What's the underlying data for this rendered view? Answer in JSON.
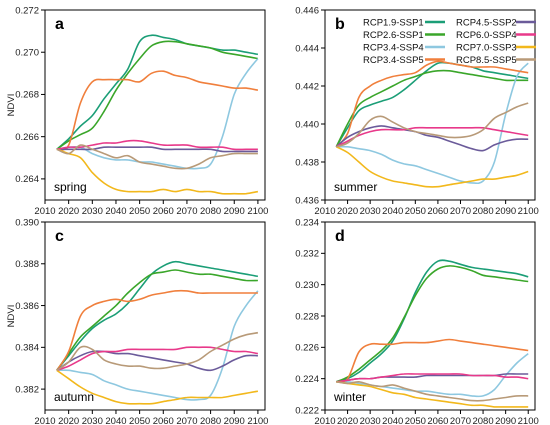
{
  "legend": [
    {
      "name": "RCP1.9-SSP1",
      "color": "#1b9e77"
    },
    {
      "name": "RCP2.6-SSP1",
      "color": "#3aa62a"
    },
    {
      "name": "RCP3.4-SSP4",
      "color": "#8ec8e0"
    },
    {
      "name": "RCP3.4-SSP5",
      "color": "#f07f3c"
    },
    {
      "name": "RCP4.5-SSP2",
      "color": "#6b5b9a"
    },
    {
      "name": "RCP6.0-SSP4",
      "color": "#e8398a"
    },
    {
      "name": "RCP7.0-SSP3",
      "color": "#f2b81c"
    },
    {
      "name": "RCP8.5-SSP5",
      "color": "#b89a78"
    }
  ],
  "chart_data": [
    {
      "type": "line",
      "panel": "a",
      "season": "spring",
      "ylabel": "NDVI",
      "ylim": [
        0.263,
        0.272
      ],
      "yticks": [
        0.264,
        0.266,
        0.268,
        0.27,
        0.272
      ],
      "xlim": [
        2010,
        2103
      ],
      "xticks": [
        2010,
        2020,
        2030,
        2040,
        2050,
        2060,
        2070,
        2080,
        2090,
        2100
      ],
      "x": [
        2015,
        2020,
        2025,
        2030,
        2035,
        2040,
        2045,
        2050,
        2055,
        2060,
        2065,
        2070,
        2075,
        2080,
        2085,
        2090,
        2095,
        2100
      ],
      "series": [
        {
          "name": "RCP1.9-SSP1",
          "values": [
            0.2654,
            0.2659,
            0.2665,
            0.267,
            0.2678,
            0.2685,
            0.2692,
            0.2705,
            0.2708,
            0.2707,
            0.2706,
            0.2704,
            0.2703,
            0.2702,
            0.2701,
            0.2701,
            0.27,
            0.2699
          ]
        },
        {
          "name": "RCP2.6-SSP1",
          "values": [
            0.2654,
            0.2658,
            0.2661,
            0.2664,
            0.2672,
            0.2682,
            0.269,
            0.2697,
            0.2703,
            0.2705,
            0.2705,
            0.2704,
            0.2703,
            0.2702,
            0.27,
            0.2699,
            0.2698,
            0.2697
          ]
        },
        {
          "name": "RCP3.4-SSP4",
          "values": [
            0.2654,
            0.2655,
            0.2655,
            0.2652,
            0.265,
            0.2649,
            0.2649,
            0.2648,
            0.2648,
            0.2647,
            0.2646,
            0.2645,
            0.2645,
            0.2647,
            0.266,
            0.268,
            0.269,
            0.2697
          ]
        },
        {
          "name": "RCP3.4-SSP5",
          "values": [
            0.2654,
            0.2656,
            0.2676,
            0.2686,
            0.2687,
            0.2687,
            0.2687,
            0.2686,
            0.269,
            0.2691,
            0.2689,
            0.2688,
            0.2686,
            0.2685,
            0.2684,
            0.2683,
            0.2683,
            0.2682
          ]
        },
        {
          "name": "RCP4.5-SSP2",
          "values": [
            0.2654,
            0.2654,
            0.2654,
            0.2654,
            0.2655,
            0.2655,
            0.2655,
            0.2655,
            0.2655,
            0.2654,
            0.2654,
            0.2654,
            0.2654,
            0.2654,
            0.2653,
            0.2653,
            0.2653,
            0.2653
          ]
        },
        {
          "name": "RCP6.0-SSP4",
          "values": [
            0.2654,
            0.2655,
            0.2655,
            0.2656,
            0.2657,
            0.2657,
            0.2658,
            0.2658,
            0.2657,
            0.2656,
            0.2656,
            0.2656,
            0.2655,
            0.2655,
            0.2655,
            0.2654,
            0.2654,
            0.2654
          ]
        },
        {
          "name": "RCP7.0-SSP3",
          "values": [
            0.2654,
            0.2652,
            0.265,
            0.2643,
            0.2638,
            0.2635,
            0.2634,
            0.2634,
            0.2634,
            0.2635,
            0.2634,
            0.2635,
            0.2634,
            0.2634,
            0.2633,
            0.2633,
            0.2633,
            0.2634
          ]
        },
        {
          "name": "RCP8.5-SSP5",
          "values": [
            0.2654,
            0.2652,
            0.2656,
            0.2654,
            0.2652,
            0.265,
            0.2651,
            0.2648,
            0.2647,
            0.2646,
            0.2645,
            0.2645,
            0.2647,
            0.265,
            0.2651,
            0.2652,
            0.2652,
            0.2652
          ]
        }
      ]
    },
    {
      "type": "line",
      "panel": "b",
      "season": "summer",
      "ylabel": "",
      "ylim": [
        0.436,
        0.446
      ],
      "yticks": [
        0.436,
        0.438,
        0.44,
        0.442,
        0.444,
        0.446
      ],
      "xlim": [
        2010,
        2103
      ],
      "xticks": [
        2010,
        2020,
        2030,
        2040,
        2050,
        2060,
        2070,
        2080,
        2090,
        2100
      ],
      "x": [
        2015,
        2020,
        2025,
        2030,
        2035,
        2040,
        2045,
        2050,
        2055,
        2060,
        2065,
        2070,
        2075,
        2080,
        2085,
        2090,
        2095,
        2100
      ],
      "series": [
        {
          "name": "RCP1.9-SSP1",
          "values": [
            0.4388,
            0.4398,
            0.4407,
            0.441,
            0.4412,
            0.4414,
            0.4418,
            0.4423,
            0.4428,
            0.4432,
            0.4432,
            0.4431,
            0.443,
            0.4428,
            0.4427,
            0.4426,
            0.4425,
            0.4424
          ]
        },
        {
          "name": "RCP2.6-SSP1",
          "values": [
            0.4388,
            0.44,
            0.441,
            0.4414,
            0.4417,
            0.442,
            0.4423,
            0.4425,
            0.4427,
            0.4428,
            0.4428,
            0.4427,
            0.4426,
            0.4425,
            0.4424,
            0.4423,
            0.4423,
            0.4423
          ]
        },
        {
          "name": "RCP3.4-SSP4",
          "values": [
            0.4388,
            0.4388,
            0.4387,
            0.4386,
            0.4384,
            0.4381,
            0.4379,
            0.4378,
            0.4376,
            0.4374,
            0.4372,
            0.437,
            0.4369,
            0.437,
            0.438,
            0.4405,
            0.4425,
            0.4432
          ]
        },
        {
          "name": "RCP3.4-SSP5",
          "values": [
            0.4388,
            0.4395,
            0.4414,
            0.442,
            0.4423,
            0.4425,
            0.4426,
            0.4427,
            0.4431,
            0.4433,
            0.4432,
            0.4431,
            0.443,
            0.443,
            0.443,
            0.4429,
            0.4428,
            0.4427
          ]
        },
        {
          "name": "RCP4.5-SSP2",
          "values": [
            0.4388,
            0.4393,
            0.4396,
            0.4398,
            0.4399,
            0.4398,
            0.4397,
            0.4396,
            0.4394,
            0.4393,
            0.4391,
            0.4389,
            0.4387,
            0.4386,
            0.4389,
            0.4391,
            0.4392,
            0.4392
          ]
        },
        {
          "name": "RCP6.0-SSP4",
          "values": [
            0.4388,
            0.4391,
            0.4394,
            0.4396,
            0.4397,
            0.4397,
            0.4397,
            0.4398,
            0.4398,
            0.4398,
            0.4398,
            0.4398,
            0.4398,
            0.4398,
            0.4397,
            0.4396,
            0.4395,
            0.4394
          ]
        },
        {
          "name": "RCP7.0-SSP3",
          "values": [
            0.4388,
            0.4385,
            0.438,
            0.4375,
            0.4372,
            0.437,
            0.4369,
            0.4368,
            0.4367,
            0.4367,
            0.4368,
            0.4369,
            0.437,
            0.4371,
            0.4371,
            0.4372,
            0.4373,
            0.4375
          ]
        },
        {
          "name": "RCP8.5-SSP5",
          "values": [
            0.4388,
            0.439,
            0.4395,
            0.4402,
            0.4404,
            0.4401,
            0.4398,
            0.4396,
            0.4395,
            0.4394,
            0.4393,
            0.4393,
            0.4394,
            0.4397,
            0.4403,
            0.4406,
            0.4409,
            0.4411
          ]
        }
      ]
    },
    {
      "type": "line",
      "panel": "c",
      "season": "autumn",
      "ylabel": "NDVI",
      "ylim": [
        0.381,
        0.39
      ],
      "yticks": [
        0.382,
        0.384,
        0.386,
        0.388,
        0.39
      ],
      "xlim": [
        2010,
        2103
      ],
      "xticks": [
        2010,
        2020,
        2030,
        2040,
        2050,
        2060,
        2070,
        2080,
        2090,
        2100
      ],
      "x": [
        2015,
        2020,
        2025,
        2030,
        2035,
        2040,
        2045,
        2050,
        2055,
        2060,
        2065,
        2070,
        2075,
        2080,
        2085,
        2090,
        2095,
        2100
      ],
      "series": [
        {
          "name": "RCP1.9-SSP1",
          "values": [
            0.3829,
            0.3836,
            0.3843,
            0.3849,
            0.3853,
            0.3856,
            0.3861,
            0.3868,
            0.3875,
            0.3879,
            0.3881,
            0.388,
            0.3879,
            0.3878,
            0.3877,
            0.3876,
            0.3875,
            0.3874
          ]
        },
        {
          "name": "RCP2.6-SSP1",
          "values": [
            0.3829,
            0.3837,
            0.3845,
            0.385,
            0.3855,
            0.386,
            0.3866,
            0.3871,
            0.3875,
            0.3876,
            0.3877,
            0.3876,
            0.3875,
            0.3875,
            0.3874,
            0.3873,
            0.3872,
            0.3872
          ]
        },
        {
          "name": "RCP3.4-SSP4",
          "values": [
            0.3829,
            0.3829,
            0.3828,
            0.3827,
            0.3824,
            0.3822,
            0.382,
            0.3819,
            0.3818,
            0.3817,
            0.3816,
            0.3815,
            0.3815,
            0.3817,
            0.383,
            0.385,
            0.386,
            0.3867
          ]
        },
        {
          "name": "RCP3.4-SSP5",
          "values": [
            0.3829,
            0.3838,
            0.3855,
            0.386,
            0.3862,
            0.3863,
            0.3862,
            0.3863,
            0.3865,
            0.3866,
            0.3867,
            0.3867,
            0.3866,
            0.3866,
            0.3866,
            0.3866,
            0.3866,
            0.3866
          ]
        },
        {
          "name": "RCP4.5-SSP2",
          "values": [
            0.3829,
            0.3833,
            0.3836,
            0.3838,
            0.3838,
            0.3837,
            0.3837,
            0.3836,
            0.3835,
            0.3834,
            0.3833,
            0.3832,
            0.383,
            0.3829,
            0.3831,
            0.3834,
            0.3836,
            0.3836
          ]
        },
        {
          "name": "RCP6.0-SSP4",
          "values": [
            0.3829,
            0.3831,
            0.3834,
            0.3837,
            0.3838,
            0.3838,
            0.3839,
            0.3839,
            0.3839,
            0.3839,
            0.3839,
            0.384,
            0.384,
            0.384,
            0.3839,
            0.3838,
            0.3838,
            0.3837
          ]
        },
        {
          "name": "RCP7.0-SSP3",
          "values": [
            0.3829,
            0.3825,
            0.3821,
            0.3818,
            0.3816,
            0.3814,
            0.3813,
            0.3813,
            0.3813,
            0.3814,
            0.3815,
            0.3816,
            0.3816,
            0.3816,
            0.3816,
            0.3817,
            0.3818,
            0.3819
          ]
        },
        {
          "name": "RCP8.5-SSP5",
          "values": [
            0.3829,
            0.3833,
            0.384,
            0.3839,
            0.3834,
            0.3832,
            0.3831,
            0.3831,
            0.383,
            0.383,
            0.3831,
            0.3832,
            0.3834,
            0.3838,
            0.3841,
            0.3844,
            0.3846,
            0.3847
          ]
        }
      ]
    },
    {
      "type": "line",
      "panel": "d",
      "season": "winter",
      "ylabel": "",
      "ylim": [
        0.222,
        0.234
      ],
      "yticks": [
        0.222,
        0.224,
        0.226,
        0.228,
        0.23,
        0.232,
        0.234
      ],
      "xlim": [
        2010,
        2103
      ],
      "xticks": [
        2010,
        2020,
        2030,
        2040,
        2050,
        2060,
        2070,
        2080,
        2090,
        2100
      ],
      "x": [
        2015,
        2020,
        2025,
        2030,
        2035,
        2040,
        2045,
        2050,
        2055,
        2060,
        2065,
        2070,
        2075,
        2080,
        2085,
        2090,
        2095,
        2100
      ],
      "series": [
        {
          "name": "RCP1.9-SSP1",
          "values": [
            0.2238,
            0.224,
            0.2244,
            0.225,
            0.2256,
            0.2264,
            0.2278,
            0.2295,
            0.2308,
            0.2315,
            0.2315,
            0.2313,
            0.2311,
            0.231,
            0.2309,
            0.2308,
            0.2307,
            0.2305
          ]
        },
        {
          "name": "RCP2.6-SSP1",
          "values": [
            0.2238,
            0.2241,
            0.2246,
            0.2252,
            0.2258,
            0.2266,
            0.2279,
            0.2293,
            0.2304,
            0.231,
            0.2312,
            0.2311,
            0.2309,
            0.2306,
            0.2305,
            0.2304,
            0.2303,
            0.2302
          ]
        },
        {
          "name": "RCP3.4-SSP4",
          "values": [
            0.2238,
            0.2238,
            0.2237,
            0.2236,
            0.2235,
            0.2234,
            0.2233,
            0.2232,
            0.2232,
            0.2231,
            0.223,
            0.223,
            0.2229,
            0.2229,
            0.2233,
            0.2242,
            0.225,
            0.2256
          ]
        },
        {
          "name": "RCP3.4-SSP5",
          "values": [
            0.2238,
            0.224,
            0.2257,
            0.2262,
            0.2262,
            0.2262,
            0.2263,
            0.2263,
            0.2263,
            0.2264,
            0.2265,
            0.2264,
            0.2263,
            0.2262,
            0.2261,
            0.226,
            0.2259,
            0.2258
          ]
        },
        {
          "name": "RCP4.5-SSP2",
          "values": [
            0.2238,
            0.2239,
            0.224,
            0.224,
            0.2241,
            0.2241,
            0.2241,
            0.2241,
            0.2242,
            0.2242,
            0.2242,
            0.2242,
            0.2242,
            0.2242,
            0.2242,
            0.2243,
            0.2243,
            0.2243
          ]
        },
        {
          "name": "RCP6.0-SSP4",
          "values": [
            0.2238,
            0.2239,
            0.224,
            0.224,
            0.2241,
            0.2242,
            0.2243,
            0.2243,
            0.2243,
            0.2243,
            0.2243,
            0.2243,
            0.2242,
            0.2242,
            0.2242,
            0.2241,
            0.2241,
            0.224
          ]
        },
        {
          "name": "RCP7.0-SSP3",
          "values": [
            0.2238,
            0.2237,
            0.2236,
            0.2235,
            0.2233,
            0.2231,
            0.223,
            0.2228,
            0.2227,
            0.2226,
            0.2225,
            0.2224,
            0.2223,
            0.2223,
            0.2222,
            0.2222,
            0.2222,
            0.2222
          ]
        },
        {
          "name": "RCP8.5-SSP5",
          "values": [
            0.2238,
            0.2237,
            0.2238,
            0.2236,
            0.2235,
            0.2236,
            0.2234,
            0.2232,
            0.223,
            0.2229,
            0.2228,
            0.2227,
            0.2226,
            0.2226,
            0.2227,
            0.2228,
            0.2229,
            0.2229
          ]
        }
      ]
    }
  ]
}
